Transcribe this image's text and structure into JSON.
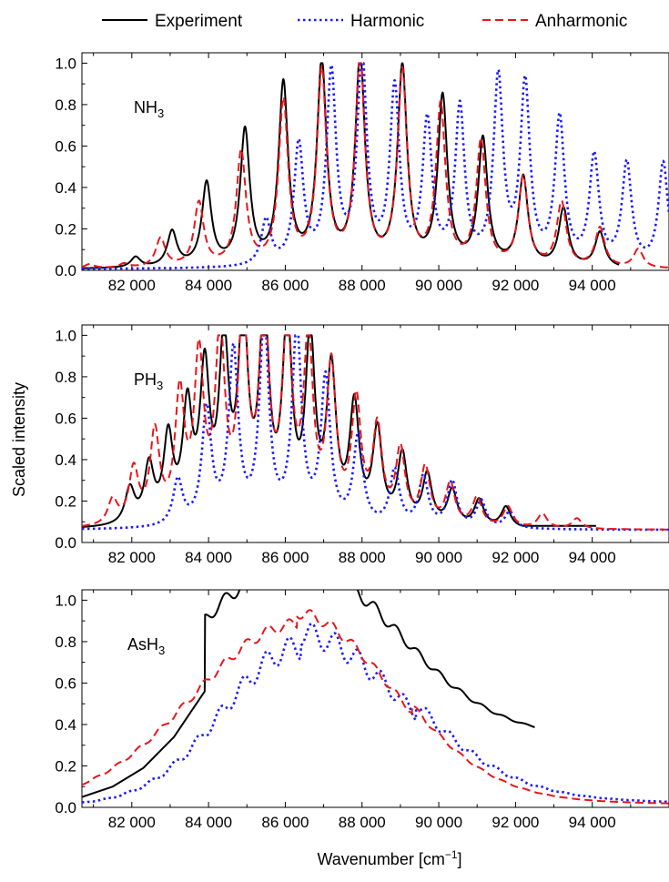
{
  "figure": {
    "ylabel": "Scaled intensity",
    "xlabel": "Wavenumber [cm",
    "xlabel_sup": "−1",
    "xlabel_end": "]"
  },
  "legend": [
    {
      "label": "Experiment",
      "color": "#000000",
      "dash": "solid"
    },
    {
      "label": "Harmonic",
      "color": "#1a1aff",
      "dash": "dotted"
    },
    {
      "label": "Anharmonic",
      "color": "#e8161b",
      "dash": "dashed"
    }
  ],
  "chart_data": [
    {
      "type": "line",
      "panel_label": "NH",
      "panel_sub": "3",
      "xlim": [
        80700,
        96000
      ],
      "ylim": [
        0,
        1.05
      ],
      "xticks": [
        82000,
        84000,
        86000,
        88000,
        90000,
        92000,
        94000
      ],
      "xtick_labels": [
        "82 000",
        "84 000",
        "86 000",
        "88 000",
        "90 000",
        "92 000",
        "94 000"
      ],
      "yticks": [
        0,
        0.2,
        0.4,
        0.6,
        0.8,
        1.0
      ],
      "ytick_labels": [
        "0.0",
        "0.2",
        "0.4",
        "0.6",
        "0.8",
        "1.0"
      ],
      "width_cm": 150,
      "baseline": 0.005,
      "series": [
        {
          "name": "Experiment",
          "xmax": 94700,
          "tail": 0.0,
          "peaks": [
            [
              82100,
              0.05
            ],
            [
              83050,
              0.17
            ],
            [
              83950,
              0.4
            ],
            [
              84950,
              0.65
            ],
            [
              85950,
              0.87
            ],
            [
              86950,
              0.97
            ],
            [
              87950,
              1.0
            ],
            [
              89050,
              0.95
            ],
            [
              90100,
              0.81
            ],
            [
              91150,
              0.61
            ],
            [
              92200,
              0.43
            ],
            [
              93250,
              0.28
            ],
            [
              94200,
              0.17
            ]
          ]
        },
        {
          "name": "Harmonic",
          "xmax": 96000,
          "tail": 0.0,
          "peaks": [
            [
              85500,
              0.22
            ],
            [
              86350,
              0.58
            ],
            [
              87200,
              0.92
            ],
            [
              88000,
              0.99
            ],
            [
              88850,
              0.84
            ],
            [
              89700,
              0.68
            ],
            [
              90550,
              0.75
            ],
            [
              91550,
              0.89
            ],
            [
              92250,
              0.86
            ],
            [
              93150,
              0.7
            ],
            [
              94050,
              0.52
            ],
            [
              94900,
              0.49
            ],
            [
              95850,
              0.5
            ]
          ]
        },
        {
          "name": "Anharmonic",
          "xmax": 96000,
          "tail": 0.0,
          "peaks": [
            [
              80900,
              0.02
            ],
            [
              81800,
              0.02
            ],
            [
              82750,
              0.14
            ],
            [
              83750,
              0.31
            ],
            [
              84850,
              0.55
            ],
            [
              85950,
              0.79
            ],
            [
              86950,
              0.93
            ],
            [
              87950,
              0.99
            ],
            [
              89050,
              0.93
            ],
            [
              90050,
              0.77
            ],
            [
              91100,
              0.6
            ],
            [
              92200,
              0.43
            ],
            [
              93200,
              0.31
            ],
            [
              94200,
              0.19
            ],
            [
              95200,
              0.09
            ]
          ]
        }
      ]
    },
    {
      "type": "line",
      "panel_label": "PH",
      "panel_sub": "3",
      "xlim": [
        80700,
        96000
      ],
      "ylim": [
        0,
        1.05
      ],
      "xticks": [
        82000,
        84000,
        86000,
        88000,
        90000,
        92000,
        94000
      ],
      "xtick_labels": [
        "82 000",
        "84 000",
        "86 000",
        "88 000",
        "90 000",
        "92 000",
        "94 000"
      ],
      "yticks": [
        0,
        0.2,
        0.4,
        0.6,
        0.8,
        1.0
      ],
      "ytick_labels": [
        "0.0",
        "0.2",
        "0.4",
        "0.6",
        "0.8",
        "1.0"
      ],
      "width_cm": 150,
      "baseline": 0.06,
      "series": [
        {
          "name": "Experiment",
          "xmax": 94100,
          "tail": 0.08,
          "peaks": [
            [
              81950,
              0.17
            ],
            [
              82450,
              0.27
            ],
            [
              82950,
              0.4
            ],
            [
              83450,
              0.53
            ],
            [
              83900,
              0.7
            ],
            [
              84400,
              0.83
            ],
            [
              84900,
              0.97
            ],
            [
              85450,
              1.0
            ],
            [
              86050,
              0.93
            ],
            [
              86650,
              0.86
            ],
            [
              87200,
              0.71
            ],
            [
              87800,
              0.55
            ],
            [
              88400,
              0.44
            ],
            [
              89050,
              0.33
            ],
            [
              89700,
              0.24
            ],
            [
              90350,
              0.17
            ],
            [
              91050,
              0.13
            ],
            [
              91750,
              0.1
            ]
          ]
        },
        {
          "name": "Harmonic",
          "xmax": 96000,
          "tail": 0.0,
          "peaks": [
            [
              83200,
              0.22
            ],
            [
              83950,
              0.55
            ],
            [
              84650,
              0.83
            ],
            [
              85450,
              0.97
            ],
            [
              86300,
              0.93
            ],
            [
              87050,
              0.7
            ],
            [
              87900,
              0.43
            ],
            [
              88850,
              0.27
            ],
            [
              89600,
              0.24
            ],
            [
              90350,
              0.22
            ],
            [
              91100,
              0.13
            ],
            [
              91850,
              0.08
            ]
          ]
        },
        {
          "name": "Anharmonic",
          "xmax": 96000,
          "tail": 0.0,
          "peaks": [
            [
              81500,
              0.12
            ],
            [
              82050,
              0.26
            ],
            [
              82600,
              0.43
            ],
            [
              83250,
              0.6
            ],
            [
              83750,
              0.77
            ],
            [
              84300,
              0.88
            ],
            [
              84900,
              0.99
            ],
            [
              85450,
              0.99
            ],
            [
              86050,
              0.95
            ],
            [
              86600,
              0.85
            ],
            [
              87200,
              0.73
            ],
            [
              87850,
              0.57
            ],
            [
              88400,
              0.45
            ],
            [
              89000,
              0.35
            ],
            [
              89650,
              0.27
            ],
            [
              90300,
              0.2
            ],
            [
              91000,
              0.14
            ],
            [
              91800,
              0.1
            ],
            [
              92700,
              0.07
            ],
            [
              93600,
              0.05
            ]
          ]
        }
      ]
    },
    {
      "type": "line",
      "panel_label": "AsH",
      "panel_sub": "3",
      "xlim": [
        80700,
        96000
      ],
      "ylim": [
        0,
        1.05
      ],
      "xticks": [
        82000,
        84000,
        86000,
        88000,
        90000,
        92000,
        94000
      ],
      "xtick_labels": [
        "82 000",
        "84 000",
        "86 000",
        "88 000",
        "90 000",
        "92 000",
        "94 000"
      ],
      "yticks": [
        0,
        0.2,
        0.4,
        0.6,
        0.8,
        1.0
      ],
      "ytick_labels": [
        "0.0",
        "0.2",
        "0.4",
        "0.6",
        "0.8",
        "1.0"
      ],
      "envelope": true,
      "series": [
        {
          "name": "Experiment",
          "xmax": 92500,
          "center": 86300,
          "sl": 2700,
          "sr": 2600,
          "amp": 0.88,
          "floor": 0.34,
          "ripple": 0.09,
          "period": 560,
          "phase": 86100,
          "x": [
            80700,
            81500,
            82300,
            83100,
            83900
          ],
          "y": [
            0.05,
            0.1,
            0.19,
            0.34,
            0.56
          ]
        },
        {
          "name": "Harmonic",
          "xmax": 96000,
          "center": 86400,
          "sl": 2000,
          "sr": 2700,
          "amp": 0.82,
          "floor": 0.01,
          "ripple": 0.14,
          "period": 600,
          "phase": 86100,
          "tailAmp": 0.08,
          "tailLen": 4000
        },
        {
          "name": "Anharmonic",
          "xmax": 96000,
          "center": 86300,
          "sl": 2700,
          "sr": 2500,
          "amp": 0.9,
          "floor": 0.01,
          "ripple": 0.06,
          "period": 560,
          "phase": 86100,
          "tailAmp": 0.06,
          "tailLen": 3500
        }
      ]
    }
  ]
}
